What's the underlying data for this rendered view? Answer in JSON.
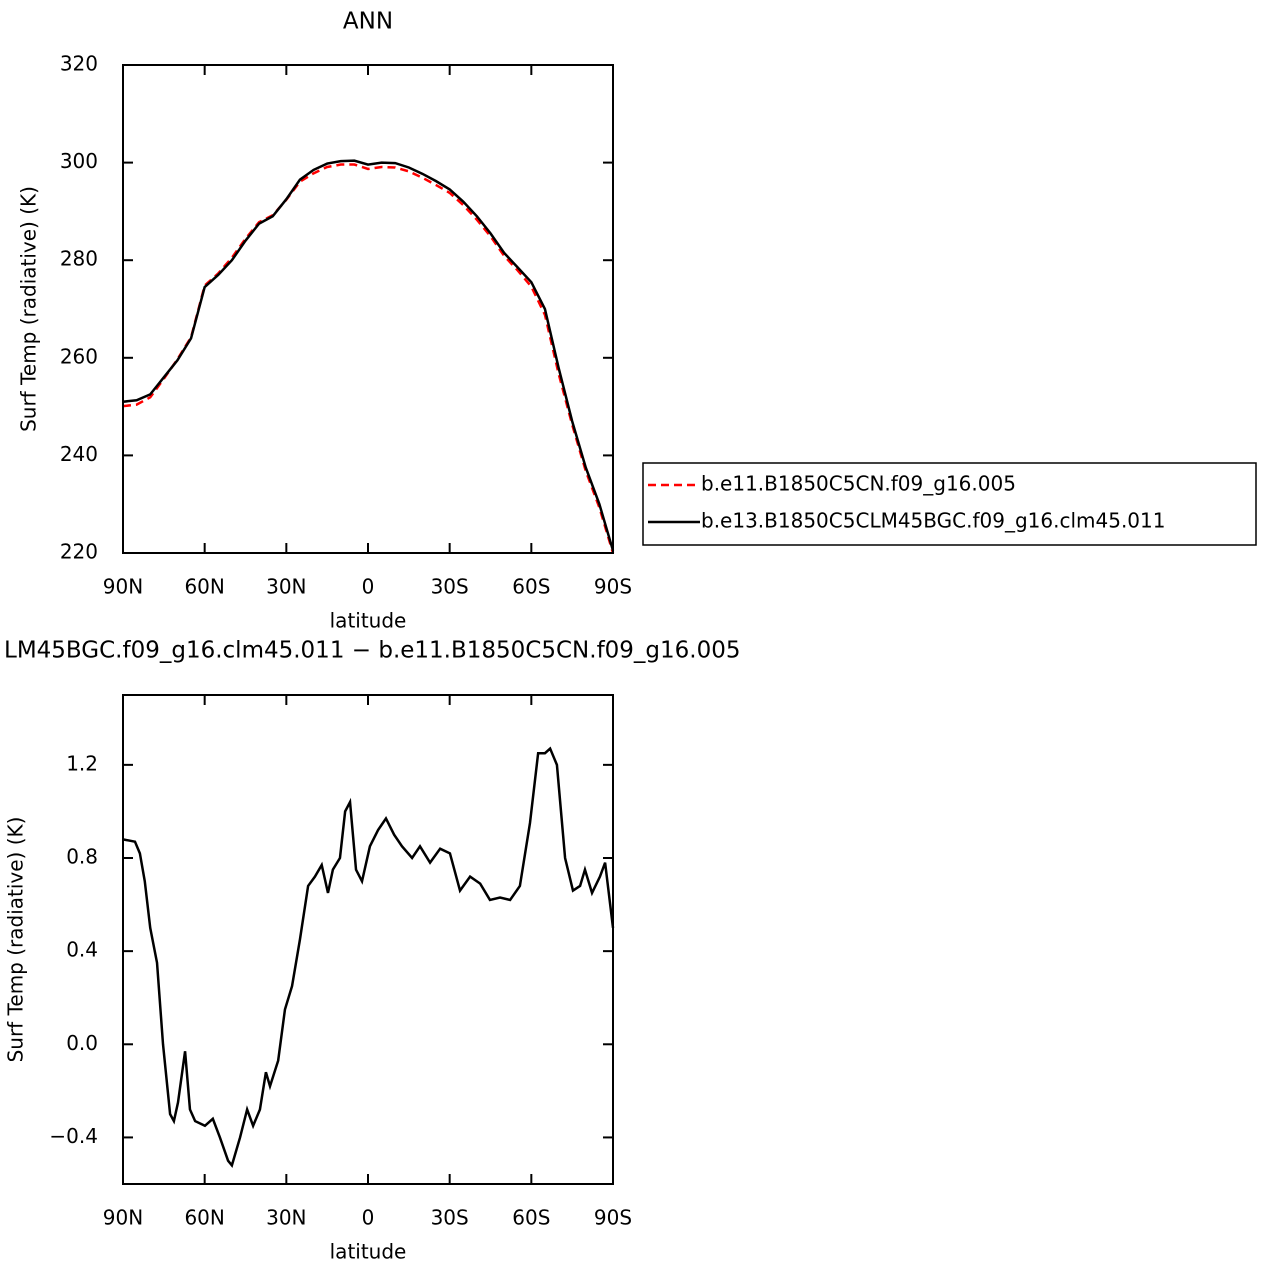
{
  "chart_data": [
    {
      "type": "line",
      "title": "ANN",
      "xlabel": "latitude",
      "ylabel": "Surf Temp (radiative) (K)",
      "x": [
        90,
        85,
        80,
        75,
        70,
        65,
        60,
        55,
        50,
        45,
        40,
        35,
        30,
        25,
        20,
        15,
        10,
        5,
        0,
        -5,
        -10,
        -15,
        -20,
        -25,
        -30,
        -35,
        -40,
        -45,
        -50,
        -55,
        -60,
        -65,
        -70,
        -75,
        -80,
        -85,
        -90
      ],
      "series": [
        {
          "name": "b.e11.B1850C5CN.f09_g16.005",
          "color": "#ff0000",
          "style": "dashed",
          "values": [
            250.1,
            250.4,
            251.9,
            255.7,
            259.7,
            264.2,
            274.8,
            277.3,
            280.5,
            284.4,
            287.8,
            289.2,
            292.4,
            296.1,
            297.8,
            299.1,
            299.6,
            299.6,
            298.7,
            299.1,
            299,
            298.2,
            296.9,
            295.4,
            293.8,
            291.3,
            288.3,
            284.9,
            280.9,
            277.9,
            274.6,
            268.8,
            256.8,
            246.3,
            236.8,
            229.3,
            220
          ]
        },
        {
          "name": "b.e13.B1850C5CLM45BGC.f09_g16.clm45.011",
          "color": "#000000",
          "style": "solid",
          "values": [
            251,
            251.3,
            252.5,
            256,
            259.5,
            264,
            274.5,
            277,
            280,
            284,
            287.5,
            289,
            292.5,
            296.5,
            298.5,
            299.8,
            300.3,
            300.4,
            299.6,
            300,
            299.9,
            299,
            297.7,
            296.2,
            294.5,
            292,
            289,
            285.5,
            281.5,
            278.5,
            275.5,
            270,
            258,
            247,
            237.5,
            230,
            220.5
          ]
        }
      ],
      "xlim": [
        90,
        -90
      ],
      "ylim": [
        220,
        320
      ],
      "xticks": [
        {
          "value": 90,
          "label": "90N"
        },
        {
          "value": 60,
          "label": "60N"
        },
        {
          "value": 30,
          "label": "30N"
        },
        0,
        {
          "value": -30,
          "label": "30S"
        },
        {
          "value": -60,
          "label": "60S"
        },
        {
          "value": -90,
          "label": "90S"
        }
      ],
      "yticks": [
        220,
        240,
        260,
        280,
        300,
        320
      ],
      "legend": "right"
    },
    {
      "type": "line",
      "title": "LM45BGC.f09_g16.clm45.011 − b.e11.B1850C5CN.f09_g16.005",
      "xlabel": "latitude",
      "ylabel": "Surf Temp (radiative) (K)",
      "x": [
        90,
        85.6,
        83.8,
        82,
        80,
        77.5,
        75.3,
        72.7,
        71.3,
        69.8,
        67.2,
        65.4,
        63.5,
        59.9,
        57,
        54.4,
        51.4,
        50,
        47,
        44.4,
        42.2,
        39.7,
        37.5,
        36,
        33,
        30.5,
        27.9,
        25,
        22,
        19.5,
        17,
        14.7,
        12.9,
        10.3,
        8.4,
        6.6,
        4.4,
        2.2,
        -0.7,
        -3.7,
        -6.6,
        -9.6,
        -12.5,
        -16.2,
        -19.1,
        -22.8,
        -26.5,
        -30.1,
        -33.8,
        -37.5,
        -41.2,
        -44.8,
        -48.5,
        -52.2,
        -55.8,
        -59.5,
        -62.5,
        -65,
        -66.9,
        -69.4,
        -72.4,
        -75.3,
        -77.9,
        -79.7,
        -82.3,
        -85.2,
        -87.1,
        -90
      ],
      "values": [
        0.88,
        0.87,
        0.82,
        0.7,
        0.5,
        0.35,
        0.0,
        -0.3,
        -0.33,
        -0.25,
        -0.03,
        -0.28,
        -0.33,
        -0.35,
        -0.32,
        -0.4,
        -0.5,
        -0.52,
        -0.4,
        -0.28,
        -0.35,
        -0.28,
        -0.12,
        -0.18,
        -0.07,
        0.15,
        0.25,
        0.45,
        0.68,
        0.72,
        0.77,
        0.65,
        0.75,
        0.8,
        1.0,
        1.04,
        0.75,
        0.7,
        0.85,
        0.92,
        0.97,
        0.9,
        0.85,
        0.8,
        0.85,
        0.78,
        0.84,
        0.82,
        0.66,
        0.72,
        0.69,
        0.62,
        0.63,
        0.62,
        0.68,
        0.95,
        1.25,
        1.25,
        1.27,
        1.2,
        0.8,
        0.66,
        0.68,
        0.75,
        0.65,
        0.72,
        0.78,
        0.5
      ],
      "color": "#000000",
      "xlim": [
        90,
        -90
      ],
      "ylim": [
        -0.6,
        1.5
      ],
      "xticks": [
        {
          "value": 90,
          "label": "90N"
        },
        {
          "value": 60,
          "label": "60N"
        },
        {
          "value": 30,
          "label": "30N"
        },
        0,
        {
          "value": -30,
          "label": "30S"
        },
        {
          "value": -60,
          "label": "60S"
        },
        {
          "value": -90,
          "label": "90S"
        }
      ],
      "yticks": [
        {
          "value": -0.4,
          "label": "−0.4"
        },
        {
          "value": 0,
          "label": "0.0"
        },
        0.4,
        0.8,
        1.2
      ]
    }
  ]
}
